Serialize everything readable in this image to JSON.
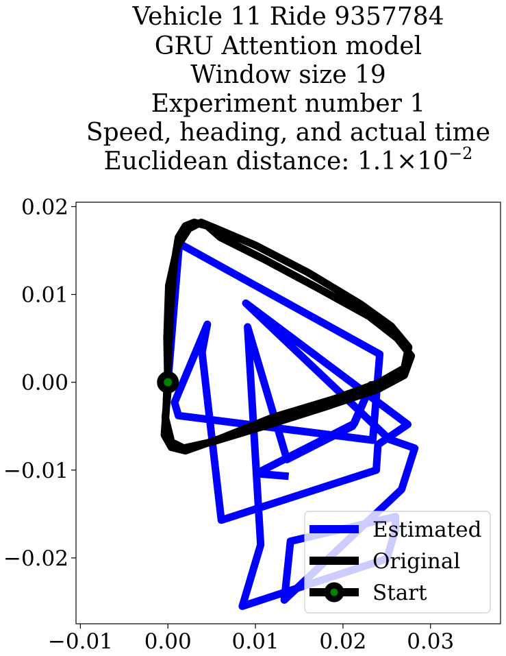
{
  "chart_data": {
    "type": "line",
    "title_lines": [
      "Vehicle 11 Ride 9357784",
      "GRU Attention model",
      "Window size 19",
      "Experiment number 1",
      "Speed, heading, and actual time"
    ],
    "title_distance": {
      "prefix": "Euclidean distance: 1.1",
      "times": "×",
      "base": "10",
      "exponent": "−2"
    },
    "xlim": [
      -0.0105,
      0.038
    ],
    "ylim": [
      -0.0275,
      0.0205
    ],
    "x_ticks": [
      -0.01,
      0.0,
      0.01,
      0.02,
      0.03
    ],
    "x_tick_labels": [
      "−0.01",
      "0.00",
      "0.01",
      "0.02",
      "0.03"
    ],
    "y_ticks": [
      0.02,
      0.01,
      0.0,
      -0.01,
      -0.02
    ],
    "y_tick_labels": [
      "0.02",
      "0.01",
      "0.00",
      "−0.01",
      "−0.02"
    ],
    "grid": false,
    "legend_position": "lower-right",
    "series": [
      {
        "name": "Estimated",
        "color": "#0000ff",
        "x": [
          0.0,
          0.0013,
          0.0242,
          0.0234,
          0.0012,
          0.00076,
          0.0045,
          0.0039,
          0.0061,
          0.0238,
          0.024,
          0.0274,
          0.0089,
          0.0253,
          0.0282,
          0.0267,
          0.0133,
          0.014,
          0.026,
          0.026,
          0.025,
          0.0085,
          0.0106,
          0.0091,
          0.0136,
          0.0211,
          0.0232,
          0.0213,
          0.0101,
          0.0138
        ],
        "y": [
          0.0,
          0.0158,
          0.0032,
          -0.0066,
          -0.0038,
          -0.0023,
          0.0066,
          0.0034,
          -0.0157,
          -0.01,
          -0.0071,
          -0.0048,
          0.009,
          -0.0065,
          -0.0075,
          -0.0122,
          -0.0248,
          -0.0181,
          -0.0153,
          -0.0168,
          -0.0201,
          -0.0255,
          -0.0185,
          0.0063,
          -0.0088,
          -0.005,
          -0.0003,
          -0.0047,
          -0.0104,
          -0.0107
        ]
      },
      {
        "name": "Original",
        "color": "#000000",
        "x": [
          0.0,
          -0.0001,
          0.0001,
          0.0011,
          0.0024,
          0.0038,
          0.0055,
          0.01,
          0.016,
          0.022,
          0.0255,
          0.0275,
          0.027,
          0.024,
          0.019,
          0.012,
          0.006,
          0.002,
          0.0004,
          -0.0004,
          -0.0002,
          0.0,
          0.0003,
          0.0007,
          0.0012,
          0.002,
          0.003,
          0.0045,
          0.006,
          0.011,
          0.017,
          0.023,
          0.0262,
          0.0278,
          0.027,
          0.024,
          0.018,
          0.011,
          0.005,
          0.0018,
          0.0004,
          -0.0003,
          0.0001
        ],
        "y": [
          0.0,
          0.005,
          0.011,
          0.0155,
          0.0175,
          0.0182,
          0.0175,
          0.0156,
          0.0125,
          0.0089,
          0.0064,
          0.004,
          0.0016,
          -0.0001,
          -0.0019,
          -0.004,
          -0.0064,
          -0.0078,
          -0.0074,
          -0.006,
          -0.003,
          0.002,
          0.0085,
          0.0135,
          0.0165,
          0.0178,
          0.0182,
          0.0178,
          0.0165,
          0.014,
          0.0108,
          0.0075,
          0.005,
          0.003,
          0.0008,
          -0.0008,
          -0.0028,
          -0.005,
          -0.0068,
          -0.0075,
          -0.0068,
          -0.004,
          0.0
        ]
      },
      {
        "name": "Start",
        "color": "#000000",
        "marker_face": "#008000",
        "x": [
          0.0
        ],
        "y": [
          0.0
        ]
      }
    ]
  }
}
